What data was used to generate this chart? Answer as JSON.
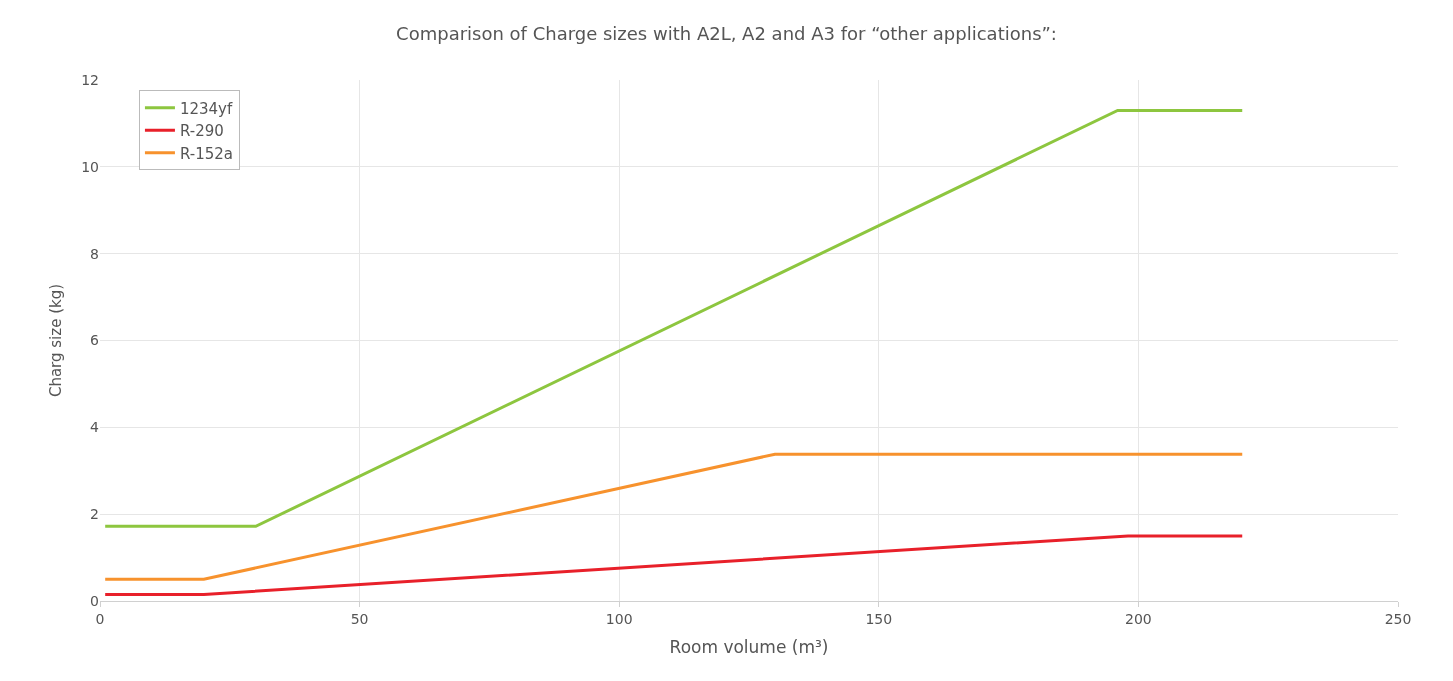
{
  "chart_data": {
    "type": "line",
    "title": "Comparison of Charge sizes with A2L, A2 and A3 for “other applications”:",
    "xlabel": "Room volume (m³)",
    "ylabel": "Charg size (kg)",
    "xlim": [
      0,
      250
    ],
    "xticks": [
      0,
      50,
      100,
      150,
      200,
      250
    ],
    "ylim": [
      0,
      12
    ],
    "yticks": [
      0,
      2,
      4,
      6,
      8,
      10,
      12
    ],
    "grid": true,
    "legend": "top left",
    "marker": "none",
    "line_style": "solid",
    "series": [
      {
        "name": "1234yf",
        "color": "#8dc63f",
        "x": [
          1,
          30,
          196,
          220
        ],
        "values": [
          1.72,
          1.72,
          11.3,
          11.3
        ]
      },
      {
        "name": "R-290",
        "color": "#e8202a",
        "x": [
          1,
          20,
          198,
          220
        ],
        "values": [
          0.15,
          0.15,
          1.5,
          1.5
        ]
      },
      {
        "name": "R-152a",
        "color": "#f7922d",
        "x": [
          1,
          20,
          130,
          220
        ],
        "values": [
          0.5,
          0.5,
          3.38,
          3.38
        ]
      }
    ]
  }
}
